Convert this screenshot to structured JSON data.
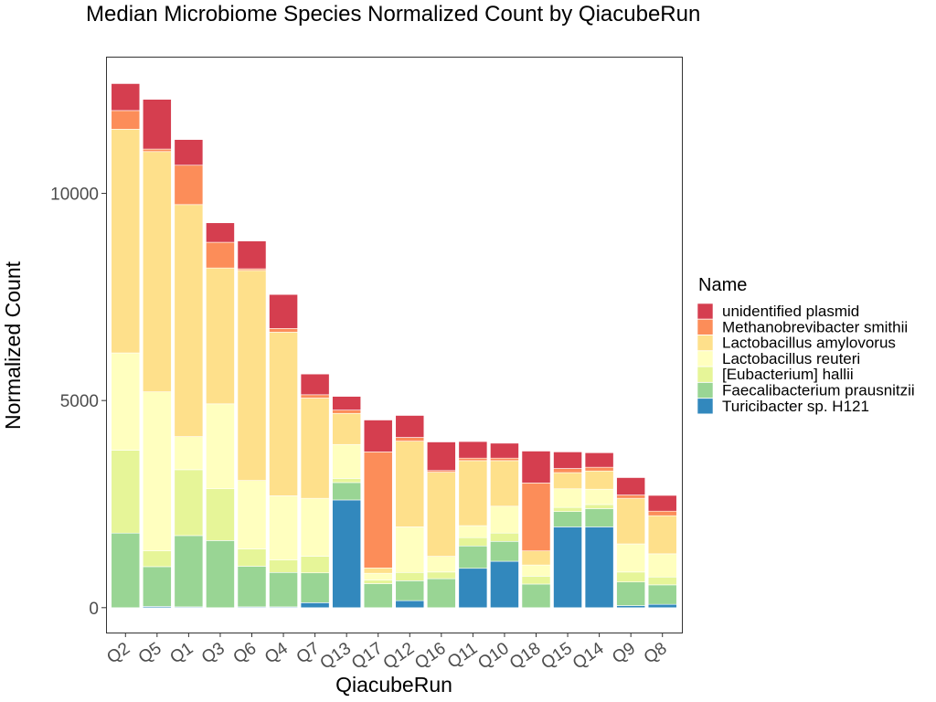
{
  "chart_data": {
    "type": "bar",
    "stacked": true,
    "title": "Median Microbiome Species Normalized Count by QiacubeRun",
    "xlabel": "QiacubeRun",
    "ylabel": "Normalized Count",
    "ylim": [
      -600,
      13300
    ],
    "yticks": [
      0,
      5000,
      10000
    ],
    "ytick_labels": [
      "0",
      "5000",
      "10000"
    ],
    "grid": false,
    "legend_title": "Name",
    "legend_position": "right",
    "categories": [
      "Q2",
      "Q5",
      "Q1",
      "Q3",
      "Q6",
      "Q4",
      "Q7",
      "Q13",
      "Q17",
      "Q12",
      "Q16",
      "Q11",
      "Q10",
      "Q18",
      "Q15",
      "Q14",
      "Q9",
      "Q8"
    ],
    "series": [
      {
        "name": "Turicibacter sp. H121",
        "color": "#3288bd",
        "values": [
          0,
          30,
          20,
          0,
          20,
          20,
          120,
          2600,
          0,
          170,
          0,
          950,
          1120,
          0,
          1950,
          1950,
          50,
          80
        ]
      },
      {
        "name": "Faecalibacterium prausnitzii",
        "color": "#99d594",
        "values": [
          1800,
          960,
          1720,
          1620,
          980,
          830,
          720,
          420,
          580,
          480,
          700,
          540,
          480,
          570,
          370,
          440,
          570,
          470
        ]
      },
      {
        "name": "[Eubacterium] hallii",
        "color": "#e6f598",
        "values": [
          2000,
          380,
          1590,
          1250,
          420,
          300,
          400,
          100,
          90,
          200,
          160,
          200,
          200,
          190,
          100,
          100,
          240,
          190
        ]
      },
      {
        "name": "Lactobacillus reuteri",
        "color": "#ffffbf",
        "values": [
          2350,
          3840,
          800,
          2050,
          1650,
          1550,
          1400,
          820,
          160,
          1100,
          380,
          290,
          650,
          270,
          450,
          370,
          680,
          560
        ]
      },
      {
        "name": "Lactobacillus amylovorus",
        "color": "#fee08b",
        "values": [
          5400,
          5800,
          5600,
          3280,
          5070,
          3950,
          2420,
          750,
          130,
          2070,
          2030,
          1570,
          1100,
          340,
          390,
          440,
          1100,
          920
        ]
      },
      {
        "name": "Methanobrevibacter smithii",
        "color": "#fc8d59",
        "values": [
          450,
          60,
          950,
          620,
          40,
          90,
          80,
          80,
          2800,
          90,
          40,
          60,
          60,
          1640,
          100,
          90,
          80,
          110
        ]
      },
      {
        "name": "unidentified plasmid",
        "color": "#d53e4f",
        "values": [
          650,
          1200,
          620,
          470,
          670,
          820,
          500,
          330,
          770,
          530,
          690,
          400,
          360,
          770,
          400,
          350,
          420,
          380
        ]
      }
    ]
  }
}
